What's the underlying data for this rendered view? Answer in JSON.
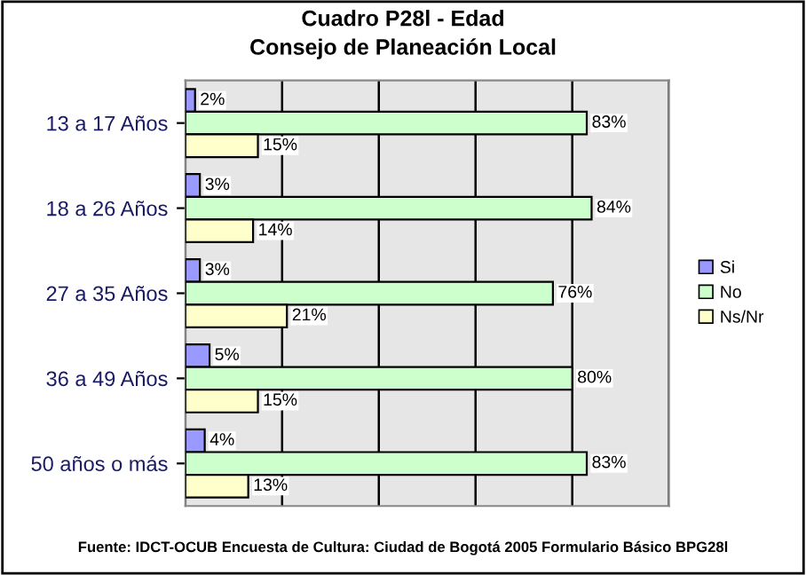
{
  "chart_data": {
    "type": "bar",
    "orientation": "horizontal",
    "title": "Cuadro P28l - Edad",
    "subtitle": "Consejo de Planeación Local",
    "categories": [
      "13 a 17 Años",
      "18 a 26 Años",
      "27 a 35 Años",
      "36 a 49 Años",
      "50 años o más"
    ],
    "series": [
      {
        "name": "Si",
        "color": "#9999ff",
        "values": [
          2,
          3,
          3,
          5,
          4
        ],
        "value_labels": [
          "2%",
          "3%",
          "3%",
          "5%",
          "4%"
        ]
      },
      {
        "name": "No",
        "color": "#ccffcc",
        "values": [
          83,
          84,
          76,
          80,
          83
        ],
        "value_labels": [
          "83%",
          "84%",
          "76%",
          "80%",
          "83%"
        ]
      },
      {
        "name": "Ns/Nr",
        "color": "#ffffcc",
        "values": [
          15,
          14,
          21,
          15,
          13
        ],
        "value_labels": [
          "15%",
          "14%",
          "21%",
          "15%",
          "13%"
        ]
      }
    ],
    "xlim": [
      0,
      100
    ],
    "xticks": [
      {
        "value": 0,
        "label": null
      },
      {
        "value": 20,
        "label": null
      },
      {
        "value": 40,
        "label": null
      },
      {
        "value": 60,
        "label": null
      },
      {
        "value": 80,
        "label": null
      },
      {
        "value": 100,
        "label": null
      }
    ],
    "tick_labels": "y",
    "grid": "x",
    "legend": "right",
    "annotations": [
      "Fuente: IDCT-OCUB Encuesta de Cultura: Ciudad de Bogotá 2005 Formulario Básico BPG28l"
    ]
  }
}
